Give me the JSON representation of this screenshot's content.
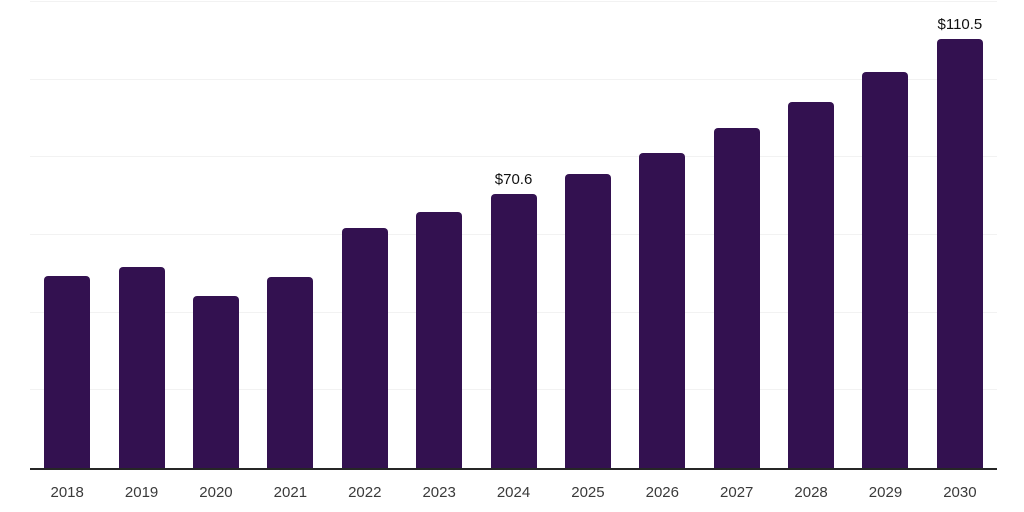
{
  "chart_data": {
    "type": "bar",
    "categories": [
      "2018",
      "2019",
      "2020",
      "2021",
      "2022",
      "2023",
      "2024",
      "2025",
      "2026",
      "2027",
      "2028",
      "2029",
      "2030"
    ],
    "values": [
      49.4,
      51.8,
      44.3,
      49.1,
      61.7,
      66.0,
      70.6,
      75.6,
      81.2,
      87.5,
      94.3,
      102.1,
      110.5
    ],
    "data_labels": {
      "2024": "$70.6",
      "2030": "$110.5"
    },
    "title": "",
    "xlabel": "",
    "ylabel": "",
    "ylim": [
      0,
      120
    ],
    "grid": true,
    "gridline_step": 20,
    "legend": "none",
    "colors": {
      "bar": "#331150",
      "gridline": "#f2f2f2",
      "axis_line": "#262626",
      "data_label": "#111111",
      "tick_label": "#3a3a3a",
      "background": "#ffffff"
    }
  }
}
